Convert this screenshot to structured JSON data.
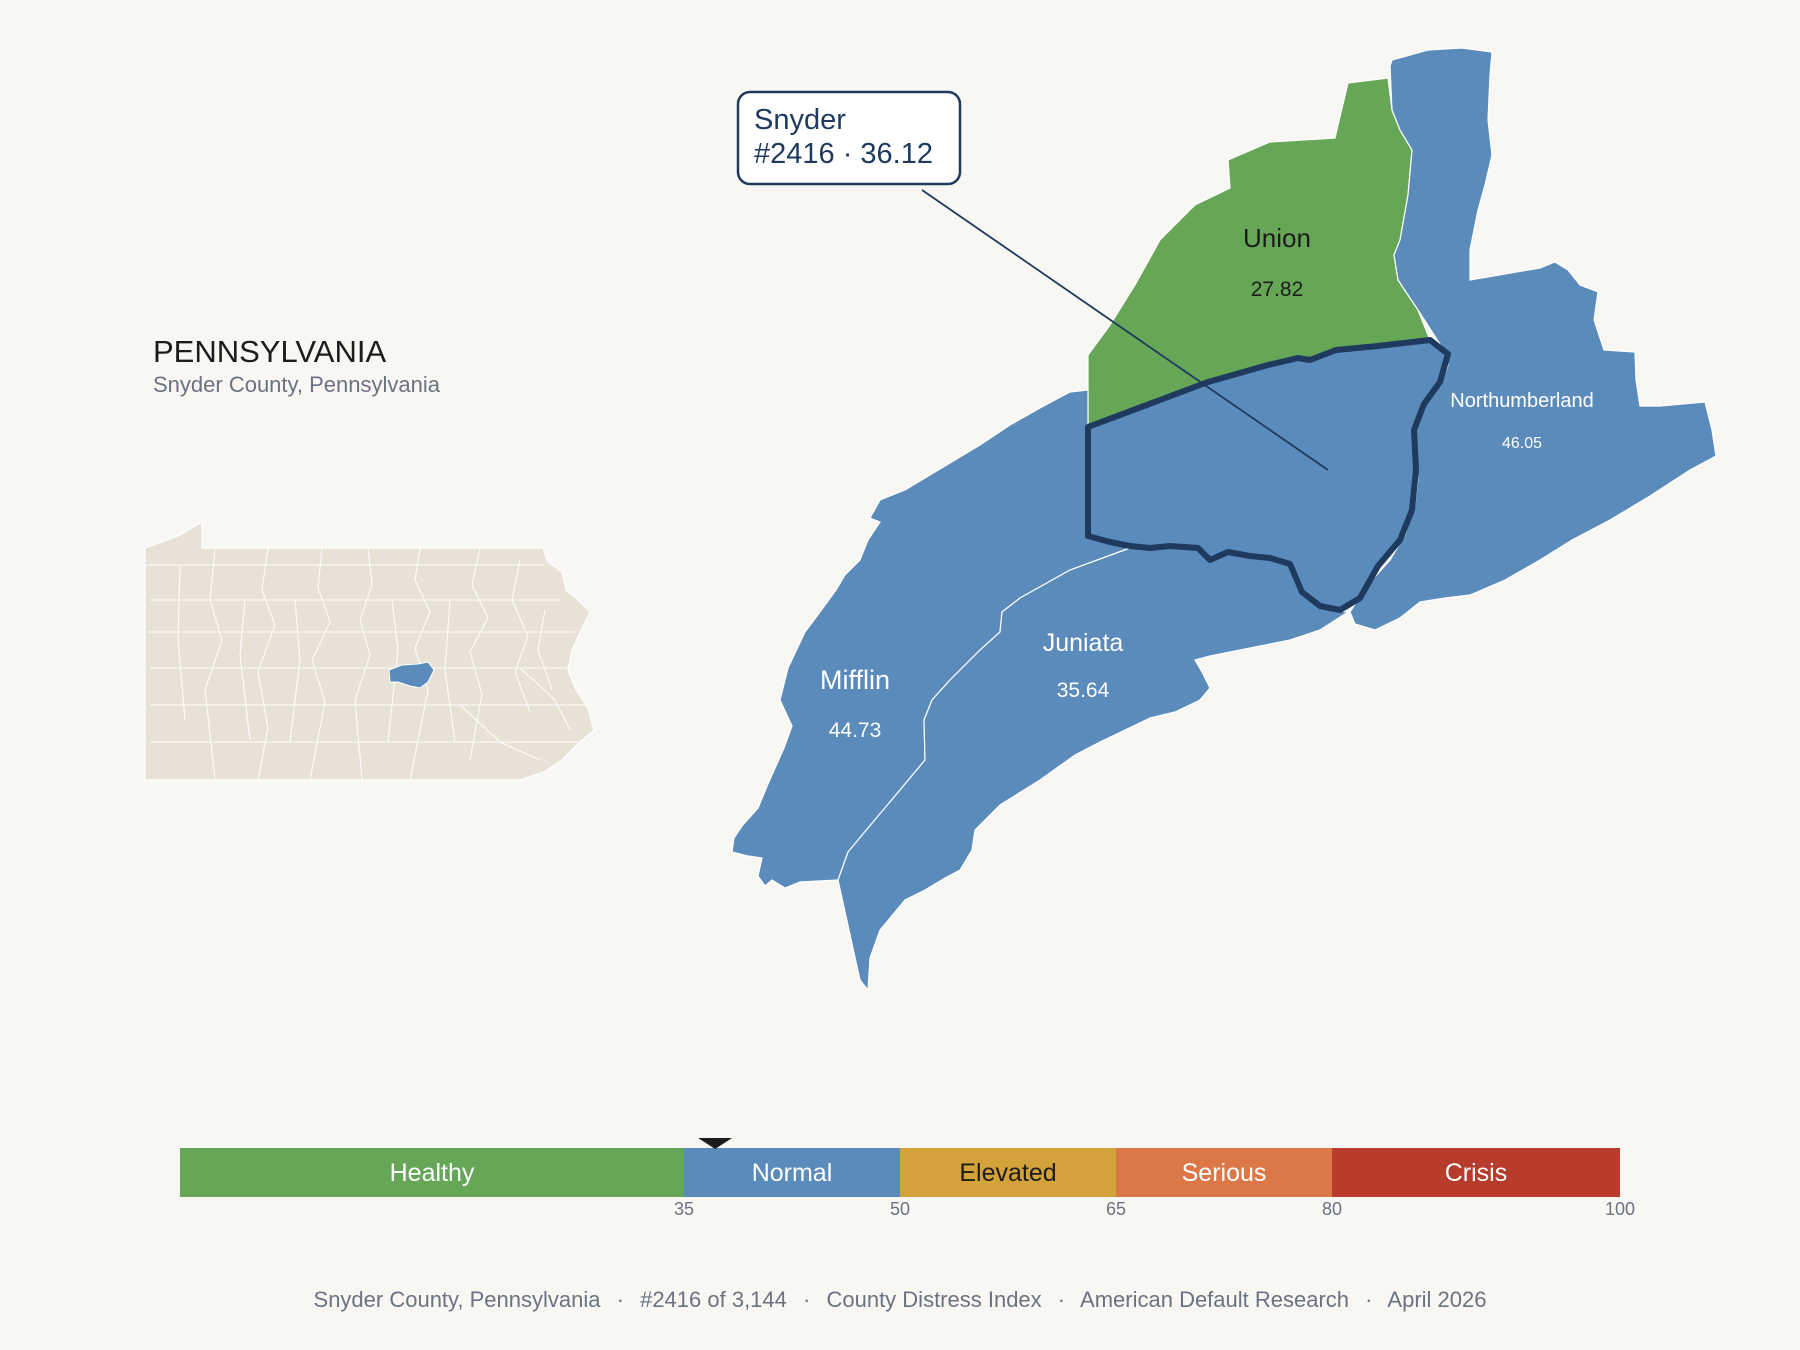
{
  "inset": {
    "state_label": "PENNSYLVANIA",
    "subtitle": "Snyder County, Pennsylvania"
  },
  "callout": {
    "line1": "Snyder",
    "line2": "#2416 · 36.12"
  },
  "counties": {
    "union": {
      "name": "Union",
      "value": "27.82",
      "category": "Healthy"
    },
    "mifflin": {
      "name": "Mifflin",
      "value": "44.73",
      "category": "Normal"
    },
    "juniata": {
      "name": "Juniata",
      "value": "35.64",
      "category": "Normal"
    },
    "northumberland": {
      "name": "Northumberland",
      "value": "46.05",
      "category": "Normal"
    },
    "snyder": {
      "name": "Snyder",
      "value": 36.12,
      "rank": 2416,
      "category": "Normal"
    }
  },
  "scale": {
    "min": 0,
    "max": 100,
    "marker_value": 36.12,
    "bands": [
      {
        "label": "Healthy",
        "from": 0,
        "to": 35,
        "color": "#66a657",
        "text_color": "#ffffff"
      },
      {
        "label": "Normal",
        "from": 35,
        "to": 50,
        "color": "#5b8bbb",
        "text_color": "#ffffff"
      },
      {
        "label": "Elevated",
        "from": 50,
        "to": 65,
        "color": "#d4a23a",
        "text_color": "#1c1c1c"
      },
      {
        "label": "Serious",
        "from": 65,
        "to": 80,
        "color": "#dc7848",
        "text_color": "#ffffff"
      },
      {
        "label": "Crisis",
        "from": 80,
        "to": 100,
        "color": "#b83c2c",
        "text_color": "#ffffff"
      }
    ],
    "ticks": [
      "35",
      "50",
      "65",
      "80",
      "100"
    ]
  },
  "colors": {
    "healthy": "#66a657",
    "normal": "#5b8bbb",
    "inset_fill": "#e8e2d6",
    "outline": "#1e3a5f",
    "background": "#f9f7f4"
  },
  "footer": {
    "county": "Snyder County, Pennsylvania",
    "rank": "#2416 of 3,144",
    "index": "County Distress Index",
    "source": "American Default Research",
    "date": "April 2026",
    "separator": "·"
  }
}
